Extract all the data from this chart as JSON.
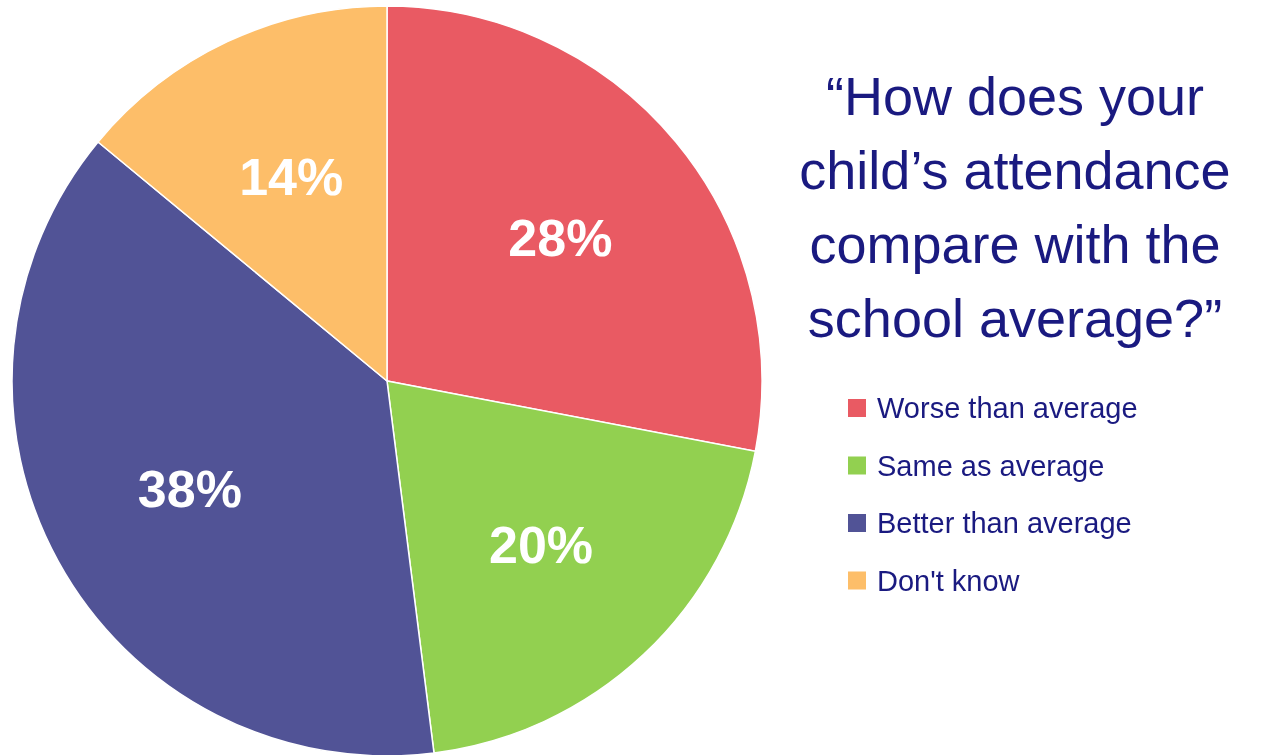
{
  "chart_data": {
    "type": "pie",
    "title": "“How does your child’s attendance compare with the school average?”",
    "categories": [
      "Worse than average",
      "Same as average",
      "Better than average",
      "Don't know"
    ],
    "values": [
      28,
      20,
      38,
      14
    ],
    "colors": [
      "#e95a63",
      "#92d050",
      "#515396",
      "#fdbe69"
    ],
    "value_labels": [
      "28%",
      "20%",
      "38%",
      "14%"
    ],
    "legend": "right"
  }
}
